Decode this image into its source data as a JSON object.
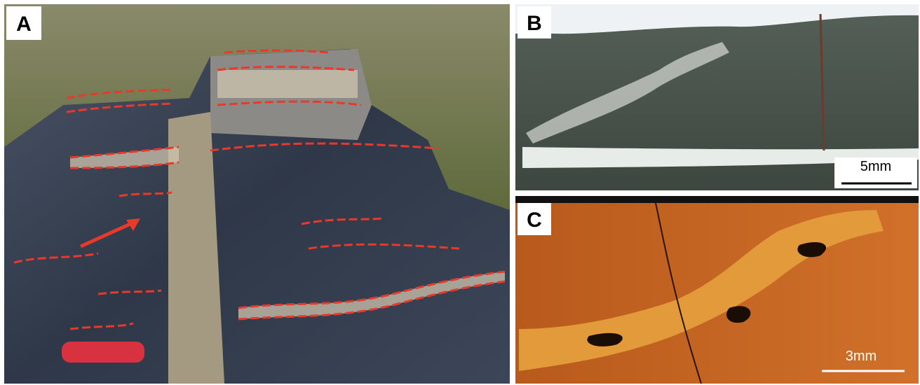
{
  "panels": [
    {
      "label": "A"
    },
    {
      "label": "B",
      "scale_bar": "5mm"
    },
    {
      "label": "C",
      "scale_bar": "3mm"
    }
  ]
}
